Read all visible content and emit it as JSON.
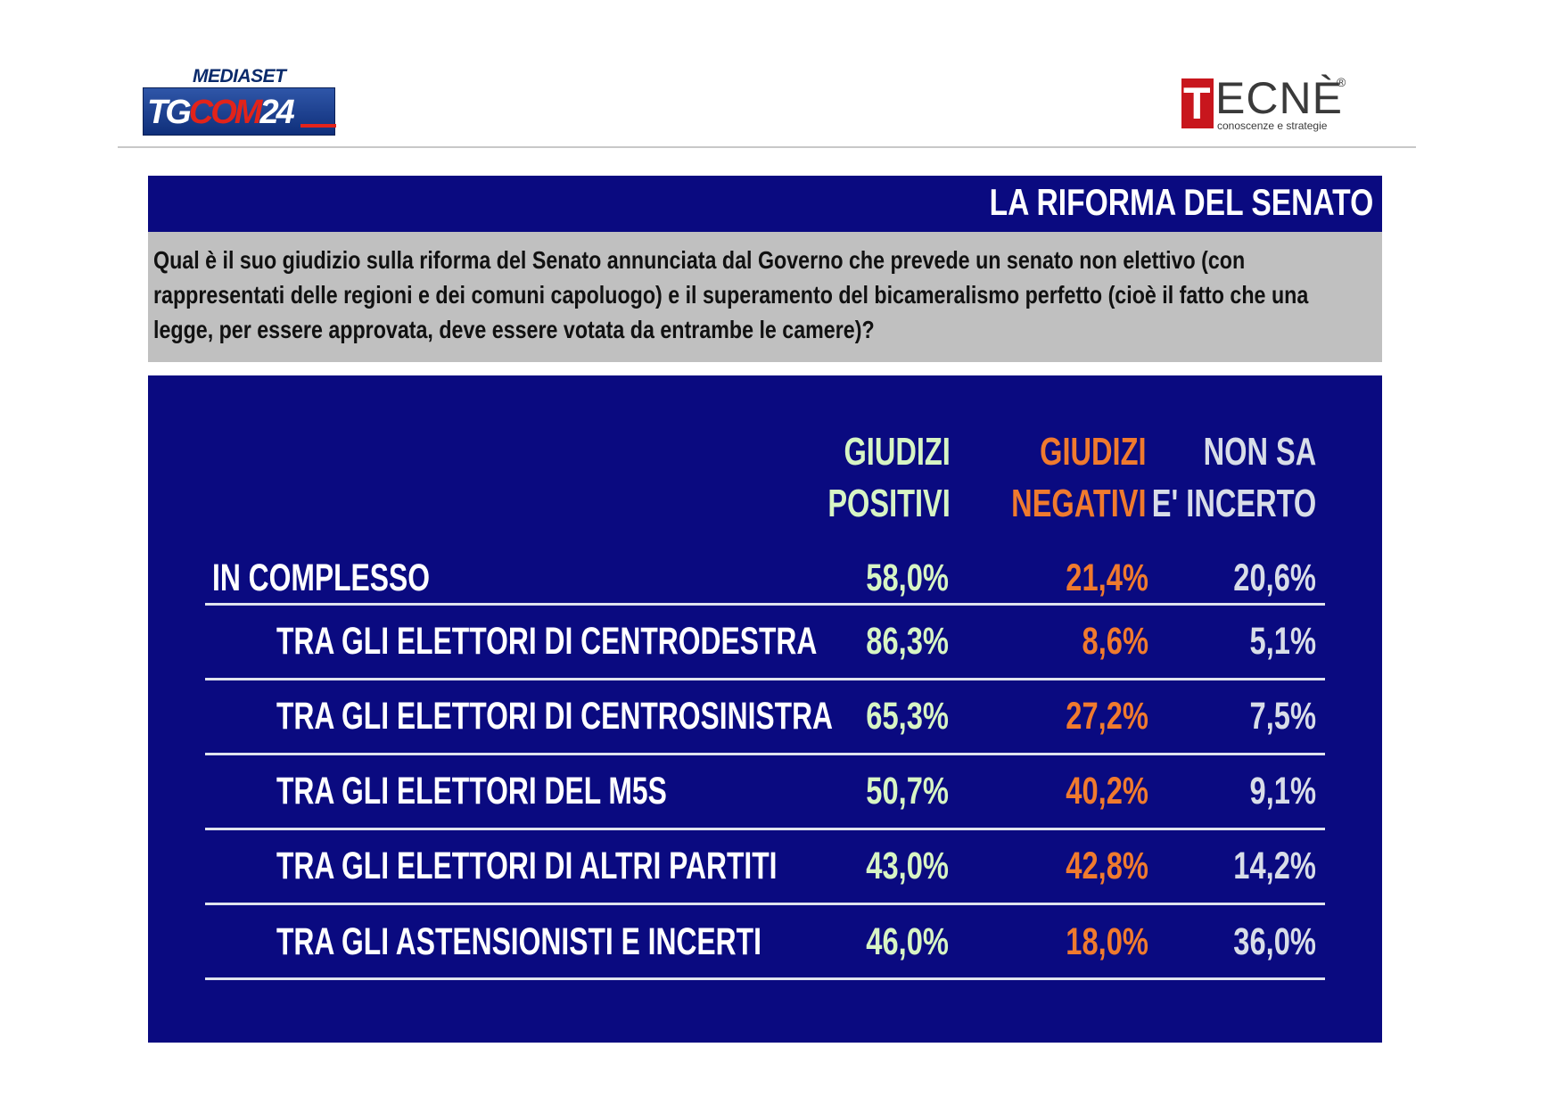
{
  "logos": {
    "left": {
      "top_text": "MEDIASET",
      "main_text_a": "TG",
      "main_text_b": "COM",
      "main_text_c": "24"
    },
    "right": {
      "first_letter": "T",
      "rest": "ECNÈ",
      "registered": "®",
      "tagline": "conoscenze e strategie"
    }
  },
  "colors": {
    "panel": "#0a0a80",
    "question_bg": "#c0c0c0",
    "positive": "#d7f5c4",
    "negative": "#f07a2e",
    "uncertain": "#d8dde8"
  },
  "chart_data": {
    "type": "table",
    "title": "LA RIFORMA DEL SENATO",
    "subtitle": "Qual è il suo giudizio sulla riforma del Senato annunciata dal Governo che prevede un senato non elettivo (con rappresentati delle regioni e dei comuni capoluogo) e il superamento del bicameralismo perfetto (cioè il fatto che una legge, per essere approvata, deve essere votata da entrambe le camere)?",
    "columns": [
      {
        "line1": "GIUDIZI",
        "line2": "POSITIVI"
      },
      {
        "line1": "GIUDIZI",
        "line2": "NEGATIVI"
      },
      {
        "line1": "NON SA",
        "line2": "E' INCERTO"
      }
    ],
    "rows": [
      {
        "label": "IN COMPLESSO",
        "values": [
          "58,0%",
          "21,4%",
          "20,6%"
        ]
      },
      {
        "label": "TRA GLI ELETTORI DI CENTRODESTRA",
        "values": [
          "86,3%",
          "8,6%",
          "5,1%"
        ]
      },
      {
        "label": "TRA GLI ELETTORI DI CENTROSINISTRA",
        "values": [
          "65,3%",
          "27,2%",
          "7,5%"
        ]
      },
      {
        "label": "TRA GLI ELETTORI DEL M5S",
        "values": [
          "50,7%",
          "40,2%",
          "9,1%"
        ]
      },
      {
        "label": "TRA GLI ELETTORI DI ALTRI PARTITI",
        "values": [
          "43,0%",
          "42,8%",
          "14,2%"
        ]
      },
      {
        "label": "TRA GLI ASTENSIONISTI E INCERTI",
        "values": [
          "46,0%",
          "18,0%",
          "36,0%"
        ]
      }
    ]
  }
}
